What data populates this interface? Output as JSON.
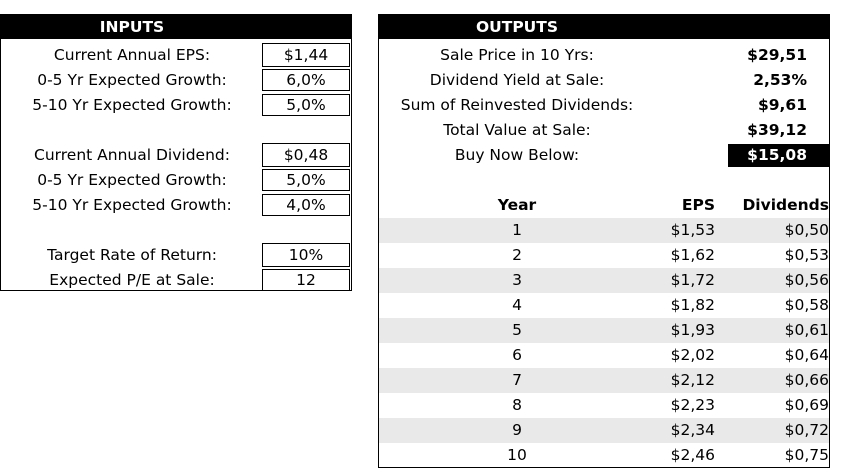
{
  "inputs": {
    "title": "INPUTS",
    "current_eps_label": "Current Annual EPS:",
    "current_eps": "$1,44",
    "eps_growth_0_5_label": "0-5 Yr Expected Growth:",
    "eps_growth_0_5": "6,0%",
    "eps_growth_5_10_label": "5-10 Yr Expected Growth:",
    "eps_growth_5_10": "5,0%",
    "current_div_label": "Current Annual Dividend:",
    "current_div": "$0,48",
    "div_growth_0_5_label": "0-5 Yr Expected Growth:",
    "div_growth_0_5": "5,0%",
    "div_growth_5_10_label": "5-10 Yr Expected Growth:",
    "div_growth_5_10": "4,0%",
    "target_return_label": "Target Rate of Return:",
    "target_return": "10%",
    "expected_pe_label": "Expected P/E at Sale:",
    "expected_pe": "12"
  },
  "outputs": {
    "title": "OUTPUTS",
    "sale_price_label": "Sale Price in 10 Yrs:",
    "sale_price": "$29,51",
    "div_yield_label": "Dividend Yield at Sale:",
    "div_yield": "2,53%",
    "reinvested_label": "Sum of Reinvested Dividends:",
    "reinvested": "$9,61",
    "total_value_label": "Total Value at Sale:",
    "total_value": "$39,12",
    "buy_below_label": "Buy Now Below:",
    "buy_below": "$15,08"
  },
  "table": {
    "headers": {
      "year": "Year",
      "eps": "EPS",
      "dividends": "Dividends"
    },
    "rows": [
      {
        "year": "1",
        "eps": "$1,53",
        "dividends": "$0,50"
      },
      {
        "year": "2",
        "eps": "$1,62",
        "dividends": "$0,53"
      },
      {
        "year": "3",
        "eps": "$1,72",
        "dividends": "$0,56"
      },
      {
        "year": "4",
        "eps": "$1,82",
        "dividends": "$0,58"
      },
      {
        "year": "5",
        "eps": "$1,93",
        "dividends": "$0,61"
      },
      {
        "year": "6",
        "eps": "$2,02",
        "dividends": "$0,64"
      },
      {
        "year": "7",
        "eps": "$2,12",
        "dividends": "$0,66"
      },
      {
        "year": "8",
        "eps": "$2,23",
        "dividends": "$0,69"
      },
      {
        "year": "9",
        "eps": "$2,34",
        "dividends": "$0,72"
      },
      {
        "year": "10",
        "eps": "$2,46",
        "dividends": "$0,75"
      }
    ]
  },
  "colors": {
    "header_bg": "#000000",
    "header_text": "#ffffff",
    "row_shade": "#e9e9e9",
    "highlight_bg": "#000000"
  }
}
